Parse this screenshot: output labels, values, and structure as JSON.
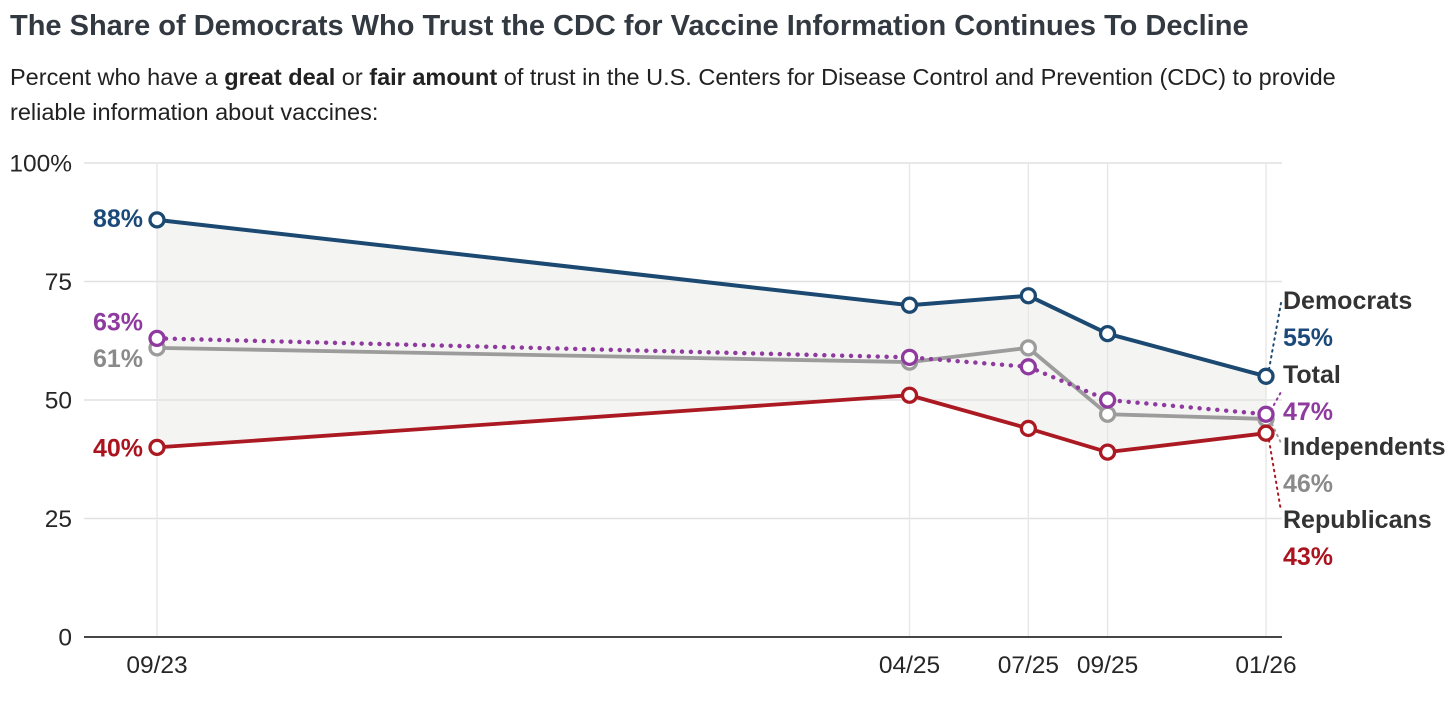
{
  "header": {
    "title": "The Share of Democrats Who Trust the CDC for Vaccine Information Continues To Decline",
    "subtitle": {
      "prefix": "Percent who have a ",
      "bold1": "great deal",
      "mid": " or ",
      "bold2": "fair amount",
      "suffix": " of trust in the U.S. Centers for Disease Control and Prevention (CDC) to provide reliable information about vaccines:"
    }
  },
  "chart_data": {
    "type": "line",
    "x_tick_labels": [
      "09/23",
      "04/25",
      "07/25",
      "09/25",
      "01/26"
    ],
    "x_months_since_first": [
      0,
      19,
      22,
      24,
      28
    ],
    "y_ticks": [
      0,
      25,
      50,
      75,
      100
    ],
    "y_tick_labels": [
      "0",
      "25",
      "50",
      "75",
      "100%"
    ],
    "ylim": [
      0,
      100
    ],
    "grid": true,
    "legend_position": "right",
    "axis_text_color": "#262626",
    "series_name_color": "#333333",
    "band_between": [
      "democrats",
      "republicans"
    ],
    "band_color": "#f4f4f2",
    "series": [
      {
        "id": "democrats",
        "name": "Democrats",
        "color": "#1b4971",
        "text_color": "#1b4a7a",
        "style": "solid",
        "values": [
          88,
          70,
          72,
          64,
          55
        ],
        "start_label": "88%",
        "end_value_label": "55%"
      },
      {
        "id": "total",
        "name": "Total",
        "color": "#8e3a9e",
        "text_color": "#8e3a9e",
        "style": "dotted",
        "values": [
          63,
          59,
          57,
          50,
          47
        ],
        "start_label": "63%",
        "end_value_label": "47%"
      },
      {
        "id": "independents",
        "name": "Independents",
        "color": "#9c9c9c",
        "text_color": "#8a8a8a",
        "style": "solid",
        "values": [
          61,
          58,
          61,
          47,
          46
        ],
        "start_label": "61%",
        "end_value_label": "46%"
      },
      {
        "id": "republicans",
        "name": "Republicans",
        "color": "#ab1a22",
        "text_color": "#ab141f",
        "style": "solid",
        "values": [
          40,
          51,
          44,
          39,
          43
        ],
        "start_label": "40%",
        "end_value_label": "43%"
      }
    ]
  }
}
